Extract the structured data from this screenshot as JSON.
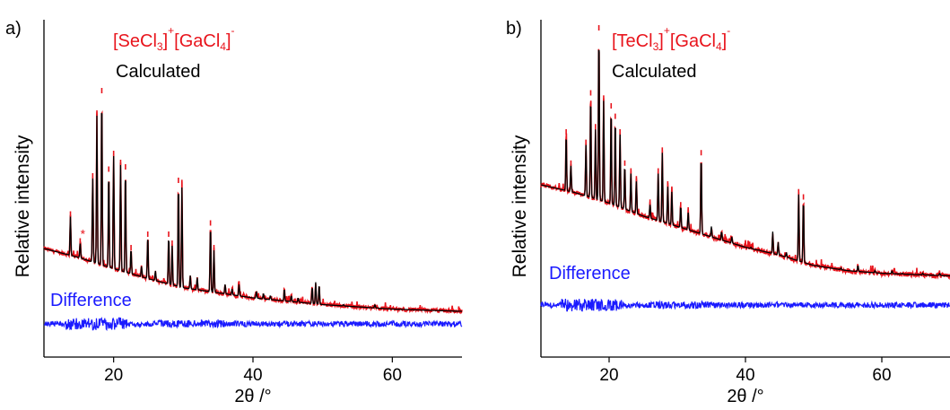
{
  "chart_data": [
    {
      "type": "line",
      "panel_label": "a)",
      "xlabel": "2θ /°",
      "ylabel": "Relative intensity",
      "xlim": [
        10,
        70
      ],
      "xticks": [
        20,
        40,
        60
      ],
      "y_ticks_labeled": false,
      "grid": false,
      "legend_placement": "inline-top-left",
      "annotations": [
        {
          "text_parts": [
            "[SeCl",
            "3",
            "]",
            "+",
            "[GaCl",
            "4",
            "]",
            "-"
          ],
          "color": "#e8141c"
        },
        {
          "text": "Calculated",
          "color": "#000000"
        },
        {
          "text": "Difference",
          "color": "#1a1aff"
        },
        {
          "text": "*",
          "x": 15.2,
          "color": "#e8141c"
        }
      ],
      "series": [
        {
          "role": "measured",
          "color": "#e8141c"
        },
        {
          "role": "calculated",
          "color": "#000000"
        },
        {
          "role": "difference",
          "color": "#1a1aff"
        }
      ],
      "background": [
        [
          10,
          0.3
        ],
        [
          15,
          0.26
        ],
        [
          20,
          0.21
        ],
        [
          25,
          0.165
        ],
        [
          30,
          0.125
        ],
        [
          40,
          0.08
        ],
        [
          50,
          0.05
        ],
        [
          60,
          0.03
        ],
        [
          70,
          0.02
        ]
      ],
      "difference_baseline": 0.0,
      "peaks": [
        {
          "x": 13.8,
          "y": 0.45
        },
        {
          "x": 15.2,
          "y": 0.33
        },
        {
          "x": 17.0,
          "y": 0.62
        },
        {
          "x": 17.6,
          "y": 0.9
        },
        {
          "x": 18.3,
          "y": 1.0
        },
        {
          "x": 19.3,
          "y": 0.65
        },
        {
          "x": 20.0,
          "y": 0.72
        },
        {
          "x": 21.0,
          "y": 0.68
        },
        {
          "x": 21.7,
          "y": 0.66
        },
        {
          "x": 22.5,
          "y": 0.3
        },
        {
          "x": 24.0,
          "y": 0.22
        },
        {
          "x": 24.9,
          "y": 0.36
        },
        {
          "x": 26.0,
          "y": 0.2
        },
        {
          "x": 27.9,
          "y": 0.36
        },
        {
          "x": 28.4,
          "y": 0.32
        },
        {
          "x": 29.3,
          "y": 0.6
        },
        {
          "x": 29.8,
          "y": 0.58
        },
        {
          "x": 31.0,
          "y": 0.18
        },
        {
          "x": 32.0,
          "y": 0.17
        },
        {
          "x": 33.9,
          "y": 0.41
        },
        {
          "x": 34.4,
          "y": 0.3
        },
        {
          "x": 36.0,
          "y": 0.14
        },
        {
          "x": 37.0,
          "y": 0.12
        },
        {
          "x": 38.0,
          "y": 0.14
        },
        {
          "x": 40.5,
          "y": 0.11
        },
        {
          "x": 41.5,
          "y": 0.1
        },
        {
          "x": 42.5,
          "y": 0.09
        },
        {
          "x": 44.5,
          "y": 0.12
        },
        {
          "x": 45.5,
          "y": 0.09
        },
        {
          "x": 46.5,
          "y": 0.08
        },
        {
          "x": 48.5,
          "y": 0.13
        },
        {
          "x": 49.0,
          "y": 0.15
        },
        {
          "x": 49.5,
          "y": 0.14
        },
        {
          "x": 53.0,
          "y": 0.05
        },
        {
          "x": 57.5,
          "y": 0.05
        }
      ]
    },
    {
      "type": "line",
      "panel_label": "b)",
      "xlabel": "2θ /°",
      "ylabel": "Relative intensity",
      "xlim": [
        10,
        70
      ],
      "xticks": [
        20,
        40,
        60
      ],
      "y_ticks_labeled": false,
      "grid": false,
      "legend_placement": "inline-top-left",
      "annotations": [
        {
          "text_parts": [
            "[TeCl",
            "3",
            "]",
            "+",
            "[GaCl",
            "4",
            "]",
            "-"
          ],
          "color": "#e8141c"
        },
        {
          "text": "Calculated",
          "color": "#000000"
        },
        {
          "text": "Difference",
          "color": "#1a1aff"
        }
      ],
      "series": [
        {
          "role": "measured",
          "color": "#e8141c"
        },
        {
          "role": "calculated",
          "color": "#000000"
        },
        {
          "role": "difference",
          "color": "#1a1aff"
        }
      ],
      "background": [
        [
          10,
          0.4
        ],
        [
          15,
          0.37
        ],
        [
          20,
          0.33
        ],
        [
          25,
          0.28
        ],
        [
          30,
          0.24
        ],
        [
          35,
          0.2
        ],
        [
          40,
          0.16
        ],
        [
          45,
          0.13
        ],
        [
          50,
          0.09
        ],
        [
          55,
          0.07
        ],
        [
          60,
          0.06
        ],
        [
          65,
          0.055
        ],
        [
          70,
          0.05
        ]
      ],
      "difference_baseline": 0.0,
      "peaks": [
        {
          "x": 13.7,
          "y": 0.6
        },
        {
          "x": 14.4,
          "y": 0.48
        },
        {
          "x": 16.6,
          "y": 0.56
        },
        {
          "x": 17.3,
          "y": 0.75
        },
        {
          "x": 18.0,
          "y": 0.62
        },
        {
          "x": 18.5,
          "y": 1.0
        },
        {
          "x": 19.2,
          "y": 0.73
        },
        {
          "x": 20.3,
          "y": 0.7
        },
        {
          "x": 20.9,
          "y": 0.66
        },
        {
          "x": 21.6,
          "y": 0.6
        },
        {
          "x": 22.3,
          "y": 0.48
        },
        {
          "x": 23.2,
          "y": 0.45
        },
        {
          "x": 24.0,
          "y": 0.42
        },
        {
          "x": 26.0,
          "y": 0.33
        },
        {
          "x": 27.2,
          "y": 0.45
        },
        {
          "x": 27.8,
          "y": 0.53
        },
        {
          "x": 28.6,
          "y": 0.4
        },
        {
          "x": 29.2,
          "y": 0.38
        },
        {
          "x": 30.5,
          "y": 0.32
        },
        {
          "x": 31.6,
          "y": 0.3
        },
        {
          "x": 33.5,
          "y": 0.52
        },
        {
          "x": 35.0,
          "y": 0.24
        },
        {
          "x": 36.5,
          "y": 0.22
        },
        {
          "x": 38.0,
          "y": 0.2
        },
        {
          "x": 40.8,
          "y": 0.16
        },
        {
          "x": 42.0,
          "y": 0.15
        },
        {
          "x": 44.0,
          "y": 0.22
        },
        {
          "x": 44.8,
          "y": 0.18
        },
        {
          "x": 46.0,
          "y": 0.14
        },
        {
          "x": 47.8,
          "y": 0.37
        },
        {
          "x": 48.5,
          "y": 0.35
        },
        {
          "x": 50.5,
          "y": 0.09
        },
        {
          "x": 52.0,
          "y": 0.08
        },
        {
          "x": 54.0,
          "y": 0.08
        },
        {
          "x": 56.5,
          "y": 0.09
        },
        {
          "x": 59.0,
          "y": 0.07
        },
        {
          "x": 61.5,
          "y": 0.07
        },
        {
          "x": 63.0,
          "y": 0.06
        },
        {
          "x": 66.0,
          "y": 0.06
        },
        {
          "x": 68.5,
          "y": 0.06
        }
      ]
    }
  ]
}
